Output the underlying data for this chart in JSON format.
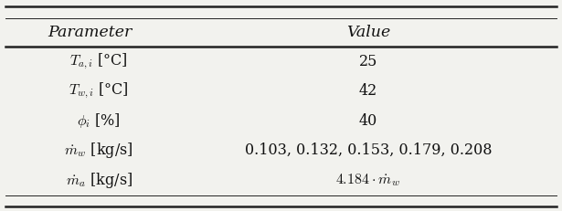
{
  "col_headers": [
    "Parameter",
    "Value"
  ],
  "param_labels": [
    "$T_{a,i}$ [°C]",
    "$T_{w,i}$ [°C]",
    "$\\phi_i$ [%]",
    "$\\dot{m}_w$ [kg/s]",
    "$\\dot{m}_a$ [kg/s]"
  ],
  "value_labels": [
    "25",
    "42",
    "40",
    "0.103, 0.132, 0.153, 0.179, 0.208",
    "$4.184 \\cdot \\dot{m}_w$"
  ],
  "background_color": "#f2f2ee",
  "line_color": "#222222",
  "text_color": "#111111",
  "fontsize": 11.5,
  "header_fontsize": 12.5
}
